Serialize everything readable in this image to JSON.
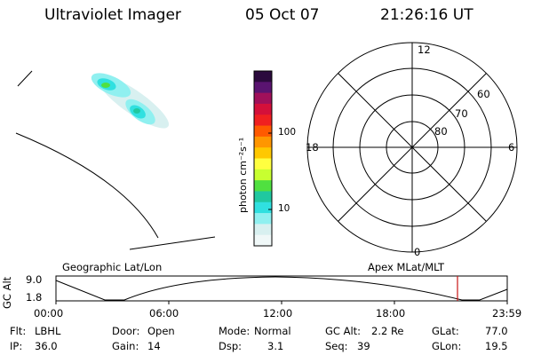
{
  "header": {
    "instrument": "Ultraviolet Imager",
    "date": "05 Oct 07",
    "time": "21:26:16 UT"
  },
  "colorbar": {
    "label": "photon cm⁻²s⁻¹",
    "ticks": [
      "100",
      "10"
    ],
    "scale": "log",
    "colors": [
      "#2b0a3d",
      "#5a1470",
      "#a0105a",
      "#d4103a",
      "#f02020",
      "#ff5a00",
      "#ff9600",
      "#ffc800",
      "#ffff40",
      "#c8ff30",
      "#50e040",
      "#20c8a0",
      "#30e0e0",
      "#90f0f0",
      "#d8f0f0",
      "#f0f8f8"
    ]
  },
  "polar_plot": {
    "mlt_labels": {
      "top": "12",
      "left": "18",
      "right": "6",
      "bottom": "0"
    },
    "lat_labels": [
      "60",
      "70",
      "80"
    ]
  },
  "altitude_strip": {
    "left_label": "Geographic Lat/Lon",
    "right_label": "Apex MLat/MLT",
    "axis_label": "GC Alt",
    "y_ticks": [
      "9.0",
      "1.8"
    ],
    "x_ticks": [
      "00:00",
      "06:00",
      "12:00",
      "18:00",
      "23:59"
    ],
    "marker_time": "21:26",
    "marker_color": "#c81414"
  },
  "status": {
    "flt_label": "Flt:",
    "flt_value": "LBHL",
    "ip_label": "IP:",
    "ip_value": "36.0",
    "door_label": "Door:",
    "door_value": "Open",
    "gain_label": "Gain:",
    "gain_value": "14",
    "mode_label": "Mode:",
    "mode_value": "Normal",
    "dsp_label": "Dsp:",
    "dsp_value": "3.1",
    "gcalt_label": "GC Alt:",
    "gcalt_value": "2.2 Re",
    "seq_label": "Seq:",
    "seq_value": "39",
    "glat_label": "GLat:",
    "glat_value": "77.0",
    "glon_label": "GLon:",
    "glon_value": "19.5"
  }
}
